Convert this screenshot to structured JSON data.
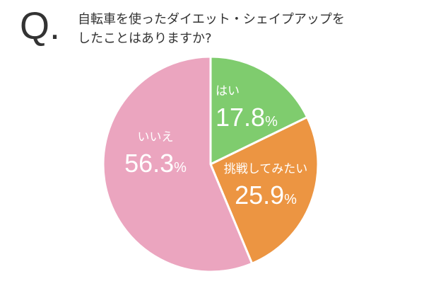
{
  "question": {
    "mark": "Q.",
    "line1": "自転車を使ったダイエット・シェイプアップを",
    "line2": "したことはありますか?"
  },
  "chart_data": {
    "type": "pie",
    "title": "",
    "start_angle_deg": 0,
    "direction": "clockwise",
    "slices": [
      {
        "label": "はい",
        "value": 17.8,
        "display": "17.8",
        "unit": "%",
        "color": "#7fcc6e"
      },
      {
        "label": "挑戦してみたい",
        "value": 25.9,
        "display": "25.9",
        "unit": "%",
        "color": "#ec9542"
      },
      {
        "label": "いいえ",
        "value": 56.3,
        "display": "56.3",
        "unit": "%",
        "color": "#eba5bf"
      }
    ]
  }
}
